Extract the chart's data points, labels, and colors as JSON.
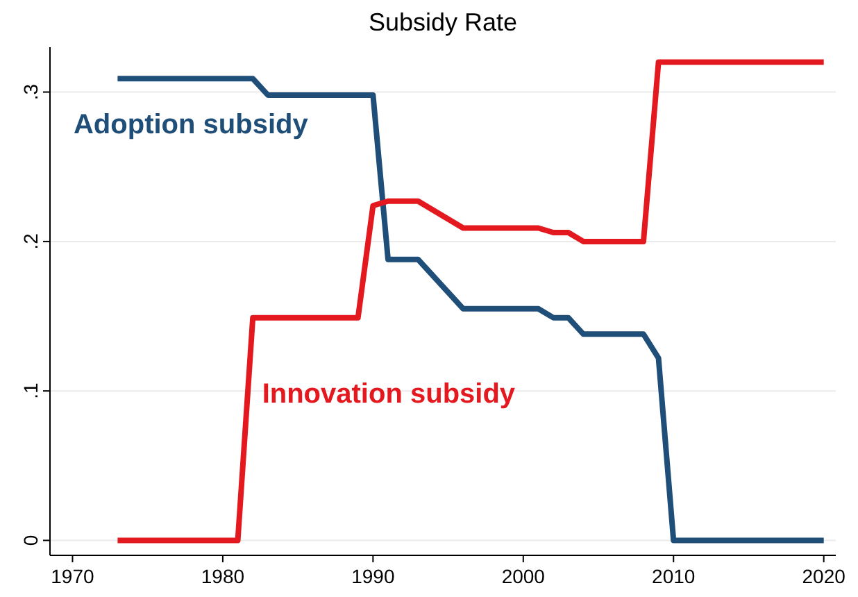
{
  "chart_data": {
    "type": "line",
    "title": "Subsidy Rate",
    "x": [
      1973,
      1982,
      1983,
      1990,
      1991,
      1993,
      1996,
      2001,
      2002,
      2003,
      2004,
      2008,
      2009,
      2010,
      2020
    ],
    "series": [
      {
        "name": "Adoption subsidy",
        "color": "#1f4e79",
        "values": [
          0.309,
          0.309,
          0.298,
          0.298,
          0.188,
          0.188,
          0.155,
          0.155,
          0.149,
          0.149,
          0.138,
          0.138,
          0.122,
          0,
          0
        ]
      },
      {
        "name": "Innovation subsidy",
        "color": "#e3191f",
        "x": [
          1973,
          1981,
          1982,
          1989,
          1990,
          1991,
          1993,
          1996,
          2001,
          2002,
          2003,
          2004,
          2008,
          2009,
          2020
        ],
        "values": [
          0,
          0,
          0.149,
          0.149,
          0.224,
          0.227,
          0.227,
          0.209,
          0.209,
          0.206,
          0.206,
          0.2,
          0.2,
          0.32,
          0.32
        ]
      }
    ],
    "xlim": [
      1968.5,
      2020.8
    ],
    "xticks": [
      1970,
      1980,
      1990,
      2000,
      2010,
      2020
    ],
    "ylim": [
      -0.01,
      0.33
    ],
    "yticks": [
      {
        "value": 0,
        "label": "0"
      },
      {
        "value": 0.1,
        "label": ".1"
      },
      {
        "value": 0.2,
        "label": ".2"
      },
      {
        "value": 0.3,
        "label": ".3"
      }
    ],
    "grid": "y",
    "line_style": "solid",
    "marker": "none"
  }
}
